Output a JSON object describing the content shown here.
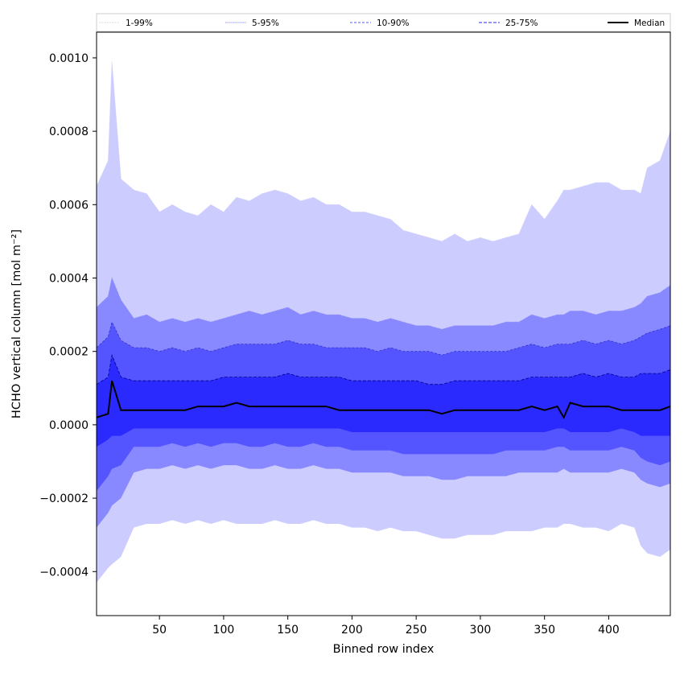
{
  "chart_data": {
    "type": "area",
    "xlabel": "Binned row index",
    "ylabel": "HCHO vertical column [mol m⁻²]",
    "xlim": [
      1,
      448
    ],
    "ylim": [
      -0.00052,
      0.00107
    ],
    "x_ticks": [
      50,
      100,
      150,
      200,
      250,
      300,
      350,
      400
    ],
    "y_ticks": [
      -0.0004,
      -0.0002,
      0.0,
      0.0002,
      0.0004,
      0.0006,
      0.0008,
      0.001
    ],
    "y_tick_labels": [
      "−0.0004",
      "−0.0002",
      "0.0000",
      "0.0002",
      "0.0004",
      "0.0006",
      "0.0008",
      "0.0010"
    ],
    "legend_position": "top (above plot)",
    "colors": {
      "band_1_99": "#ccccff",
      "band_5_95": "#8888ff",
      "band_10_90": "#5555ff",
      "band_25_75": "#2a2aff",
      "line_1_99": "#ccccff",
      "line_5_95": "#8888ff",
      "line_10_90": "#3333cc",
      "line_25_75": "#000088",
      "median": "#000000"
    },
    "legend": [
      {
        "label": "1-99%",
        "color": "#ccccff",
        "dash": "1,1"
      },
      {
        "label": "5-95%",
        "color": "#8888ff",
        "dash": "1.5,1"
      },
      {
        "label": "10-90%",
        "color": "#5555ff",
        "dash": "3,2"
      },
      {
        "label": "25-75%",
        "color": "#2a2aff",
        "dash": "4,2"
      },
      {
        "label": "Median",
        "color": "#000000",
        "dash": ""
      }
    ],
    "x": [
      1,
      10,
      13,
      20,
      30,
      40,
      50,
      60,
      70,
      80,
      90,
      100,
      110,
      120,
      130,
      140,
      150,
      160,
      170,
      180,
      190,
      200,
      210,
      220,
      230,
      240,
      250,
      260,
      270,
      280,
      290,
      300,
      310,
      320,
      330,
      340,
      350,
      360,
      365,
      370,
      380,
      390,
      400,
      410,
      420,
      425,
      430,
      440,
      448
    ],
    "series": [
      {
        "name": "1-99%",
        "upper": [
          0.00065,
          0.00072,
          0.00099,
          0.00067,
          0.00064,
          0.00063,
          0.00058,
          0.0006,
          0.00058,
          0.00057,
          0.0006,
          0.00058,
          0.00062,
          0.00061,
          0.00063,
          0.00064,
          0.00063,
          0.00061,
          0.00062,
          0.0006,
          0.0006,
          0.00058,
          0.00058,
          0.00057,
          0.00056,
          0.00053,
          0.00052,
          0.00051,
          0.0005,
          0.00052,
          0.0005,
          0.00051,
          0.0005,
          0.00051,
          0.00052,
          0.0006,
          0.00056,
          0.00061,
          0.00064,
          0.00064,
          0.00065,
          0.00066,
          0.00066,
          0.00064,
          0.00064,
          0.00063,
          0.0007,
          0.00072,
          0.0008
        ],
        "lower": [
          -0.00043,
          -0.00039,
          -0.00038,
          -0.00036,
          -0.00028,
          -0.00027,
          -0.00027,
          -0.00026,
          -0.00027,
          -0.00026,
          -0.00027,
          -0.00026,
          -0.00027,
          -0.00027,
          -0.00027,
          -0.00026,
          -0.00027,
          -0.00027,
          -0.00026,
          -0.00027,
          -0.00027,
          -0.00028,
          -0.00028,
          -0.00029,
          -0.00028,
          -0.00029,
          -0.00029,
          -0.0003,
          -0.00031,
          -0.00031,
          -0.0003,
          -0.0003,
          -0.0003,
          -0.00029,
          -0.00029,
          -0.00029,
          -0.00028,
          -0.00028,
          -0.00027,
          -0.00027,
          -0.00028,
          -0.00028,
          -0.00029,
          -0.00027,
          -0.00028,
          -0.00033,
          -0.00035,
          -0.00036,
          -0.00034
        ]
      },
      {
        "name": "5-95%",
        "upper": [
          0.00032,
          0.00035,
          0.0004,
          0.00034,
          0.00029,
          0.0003,
          0.00028,
          0.00029,
          0.00028,
          0.00029,
          0.00028,
          0.00029,
          0.0003,
          0.00031,
          0.0003,
          0.00031,
          0.00032,
          0.0003,
          0.00031,
          0.0003,
          0.0003,
          0.00029,
          0.00029,
          0.00028,
          0.00029,
          0.00028,
          0.00027,
          0.00027,
          0.00026,
          0.00027,
          0.00027,
          0.00027,
          0.00027,
          0.00028,
          0.00028,
          0.0003,
          0.00029,
          0.0003,
          0.0003,
          0.00031,
          0.00031,
          0.0003,
          0.00031,
          0.00031,
          0.00032,
          0.00033,
          0.00035,
          0.00036,
          0.00038
        ],
        "lower": [
          -0.00028,
          -0.00024,
          -0.00022,
          -0.0002,
          -0.00013,
          -0.00012,
          -0.00012,
          -0.00011,
          -0.00012,
          -0.00011,
          -0.00012,
          -0.00011,
          -0.00011,
          -0.00012,
          -0.00012,
          -0.00011,
          -0.00012,
          -0.00012,
          -0.00011,
          -0.00012,
          -0.00012,
          -0.00013,
          -0.00013,
          -0.00013,
          -0.00013,
          -0.00014,
          -0.00014,
          -0.00014,
          -0.00015,
          -0.00015,
          -0.00014,
          -0.00014,
          -0.00014,
          -0.00014,
          -0.00013,
          -0.00013,
          -0.00013,
          -0.00013,
          -0.00012,
          -0.00013,
          -0.00013,
          -0.00013,
          -0.00013,
          -0.00012,
          -0.00013,
          -0.00015,
          -0.00016,
          -0.00017,
          -0.00016
        ]
      },
      {
        "name": "10-90%",
        "upper": [
          0.00021,
          0.00024,
          0.00028,
          0.00023,
          0.00021,
          0.00021,
          0.0002,
          0.00021,
          0.0002,
          0.00021,
          0.0002,
          0.00021,
          0.00022,
          0.00022,
          0.00022,
          0.00022,
          0.00023,
          0.00022,
          0.00022,
          0.00021,
          0.00021,
          0.00021,
          0.00021,
          0.0002,
          0.00021,
          0.0002,
          0.0002,
          0.0002,
          0.00019,
          0.0002,
          0.0002,
          0.0002,
          0.0002,
          0.0002,
          0.00021,
          0.00022,
          0.00021,
          0.00022,
          0.00022,
          0.00022,
          0.00023,
          0.00022,
          0.00023,
          0.00022,
          0.00023,
          0.00024,
          0.00025,
          0.00026,
          0.00027
        ],
        "lower": [
          -0.00018,
          -0.00014,
          -0.00012,
          -0.00011,
          -6e-05,
          -6e-05,
          -6e-05,
          -5e-05,
          -6e-05,
          -5e-05,
          -6e-05,
          -5e-05,
          -5e-05,
          -6e-05,
          -6e-05,
          -5e-05,
          -6e-05,
          -6e-05,
          -5e-05,
          -6e-05,
          -6e-05,
          -7e-05,
          -7e-05,
          -7e-05,
          -7e-05,
          -8e-05,
          -8e-05,
          -8e-05,
          -8e-05,
          -8e-05,
          -8e-05,
          -8e-05,
          -8e-05,
          -7e-05,
          -7e-05,
          -7e-05,
          -7e-05,
          -6e-05,
          -6e-05,
          -7e-05,
          -7e-05,
          -7e-05,
          -7e-05,
          -6e-05,
          -7e-05,
          -9e-05,
          -0.0001,
          -0.00011,
          -0.0001
        ]
      },
      {
        "name": "25-75%",
        "upper": [
          0.00011,
          0.00013,
          0.00019,
          0.00013,
          0.00012,
          0.00012,
          0.00012,
          0.00012,
          0.00012,
          0.00012,
          0.00012,
          0.00013,
          0.00013,
          0.00013,
          0.00013,
          0.00013,
          0.00014,
          0.00013,
          0.00013,
          0.00013,
          0.00013,
          0.00012,
          0.00012,
          0.00012,
          0.00012,
          0.00012,
          0.00012,
          0.00011,
          0.00011,
          0.00012,
          0.00012,
          0.00012,
          0.00012,
          0.00012,
          0.00012,
          0.00013,
          0.00013,
          0.00013,
          0.00013,
          0.00013,
          0.00014,
          0.00013,
          0.00014,
          0.00013,
          0.00013,
          0.00014,
          0.00014,
          0.00014,
          0.00015
        ],
        "lower": [
          -6e-05,
          -4e-05,
          -3e-05,
          -3e-05,
          -1e-05,
          -1e-05,
          -1e-05,
          -1e-05,
          -1e-05,
          -1e-05,
          -1e-05,
          -1e-05,
          -1e-05,
          -1e-05,
          -1e-05,
          -1e-05,
          -1e-05,
          -1e-05,
          -1e-05,
          -1e-05,
          -1e-05,
          -2e-05,
          -2e-05,
          -2e-05,
          -2e-05,
          -2e-05,
          -2e-05,
          -2e-05,
          -2e-05,
          -2e-05,
          -2e-05,
          -2e-05,
          -2e-05,
          -2e-05,
          -2e-05,
          -2e-05,
          -2e-05,
          -1e-05,
          -1e-05,
          -2e-05,
          -2e-05,
          -2e-05,
          -2e-05,
          -1e-05,
          -2e-05,
          -3e-05,
          -3e-05,
          -3e-05,
          -3e-05
        ]
      },
      {
        "name": "Median",
        "values": [
          2e-05,
          3e-05,
          0.00012,
          4e-05,
          4e-05,
          4e-05,
          4e-05,
          4e-05,
          4e-05,
          5e-05,
          5e-05,
          5e-05,
          6e-05,
          5e-05,
          5e-05,
          5e-05,
          5e-05,
          5e-05,
          5e-05,
          5e-05,
          4e-05,
          4e-05,
          4e-05,
          4e-05,
          4e-05,
          4e-05,
          4e-05,
          4e-05,
          3e-05,
          4e-05,
          4e-05,
          4e-05,
          4e-05,
          4e-05,
          4e-05,
          5e-05,
          4e-05,
          5e-05,
          2e-05,
          6e-05,
          5e-05,
          5e-05,
          5e-05,
          4e-05,
          4e-05,
          4e-05,
          4e-05,
          4e-05,
          5e-05
        ]
      }
    ]
  }
}
